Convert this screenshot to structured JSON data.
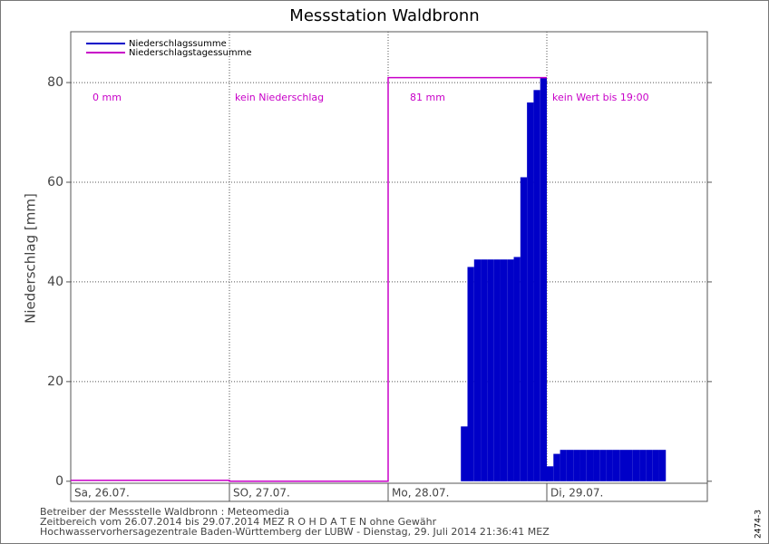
{
  "chart_data": {
    "type": "bar",
    "title": "Messstation Waldbronn",
    "ylabel": "Niederschlag [mm]",
    "xlim": [
      0,
      96
    ],
    "xticks": [
      {
        "value": 0,
        "label": "Sa, 26.07."
      },
      {
        "value": 24,
        "label": "SO, 27.07."
      },
      {
        "value": 48,
        "label": "Mo, 28.07."
      },
      {
        "value": 72,
        "label": "Di, 29.07."
      }
    ],
    "ylim": [
      -0.4,
      90.2
    ],
    "yticks": [
      0,
      20,
      40,
      60,
      80
    ],
    "grid": true,
    "legend": "upper left",
    "series": [
      {
        "name": "Niederschlagssumme",
        "color": "#0000c8",
        "x": [
          59,
          60,
          61,
          62,
          63,
          64,
          65,
          66,
          67,
          68,
          69,
          70,
          71,
          72,
          73,
          74,
          75,
          76,
          77,
          78,
          79,
          80,
          81,
          82,
          83,
          84,
          85,
          86,
          87,
          88,
          89
        ],
        "values": [
          11,
          43,
          44.5,
          44.5,
          44.5,
          44.5,
          44.5,
          44.5,
          45,
          61,
          76,
          78.5,
          81,
          3,
          5.5,
          6.3,
          6.3,
          6.3,
          6.3,
          6.3,
          6.3,
          6.3,
          6.3,
          6.3,
          6.3,
          6.3,
          6.3,
          6.3,
          6.3,
          6.3,
          6.3
        ]
      },
      {
        "name": "Niederschlagstagessumme",
        "color": "#c800c8",
        "x": [
          0,
          24,
          48
        ],
        "values": [
          0.2,
          0,
          81
        ]
      }
    ],
    "annotations": [
      "0 mm",
      "kein Niederschlag",
      "81 mm",
      "kein Wert bis 19:00"
    ],
    "footer": [
      "Betreiber der Messstelle Waldbronn : Meteomedia",
      "Zeitbereich vom 26.07.2014 bis 29.07.2014    MEZ    R O H D A T E N ohne Gewähr",
      "Hochwasservorhersagezentrale Baden-Württemberg der LUBW - Dienstag, 29. Juli 2014 21:36:41 MEZ"
    ],
    "side_label": "2474-3"
  }
}
